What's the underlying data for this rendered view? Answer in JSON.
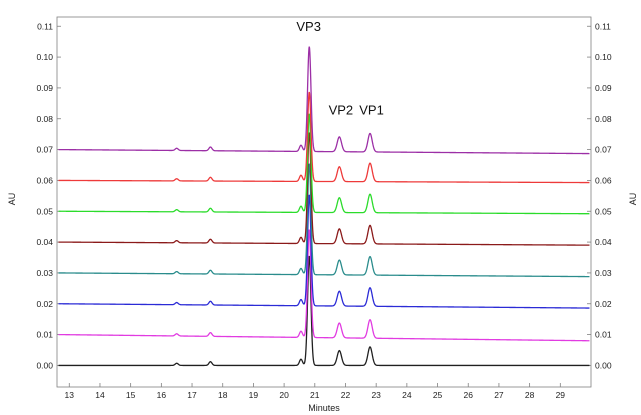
{
  "chart_data": {
    "type": "line",
    "title": "",
    "xlabel": "Minutes",
    "ylabel_left": "AU",
    "ylabel_right": "AU",
    "xlim": [
      12.6,
      30.0
    ],
    "ylim": [
      -0.007,
      0.113
    ],
    "x_ticks": [
      "13",
      "14",
      "15",
      "16",
      "17",
      "18",
      "19",
      "20",
      "21",
      "22",
      "23",
      "24",
      "25",
      "26",
      "27",
      "28",
      "29"
    ],
    "y_ticks": [
      "0.00",
      "0.01",
      "0.02",
      "0.03",
      "0.04",
      "0.05",
      "0.06",
      "0.07",
      "0.08",
      "0.09",
      "0.10",
      "0.11"
    ],
    "grid": false,
    "legend": "none",
    "annotations": [
      {
        "text": "VP3",
        "x": 20.8,
        "y": 0.1085
      },
      {
        "text": "VP2",
        "x": 21.85,
        "y": 0.0813
      },
      {
        "text": "VP1",
        "x": 22.85,
        "y": 0.0813
      }
    ],
    "peaks": [
      {
        "name": "minor",
        "rt": 16.5,
        "height": 0.0007
      },
      {
        "name": "minor",
        "rt": 17.6,
        "height": 0.0012
      },
      {
        "name": "minor",
        "rt": 20.55,
        "height": 0.002
      },
      {
        "name": "VP3",
        "rt": 20.82,
        "height": "series.vp3_height"
      },
      {
        "name": "VP2",
        "rt": 21.8,
        "height": 0.0048
      },
      {
        "name": "VP1",
        "rt": 22.8,
        "height": 0.006
      }
    ],
    "series": [
      {
        "color": "#202020",
        "baseline_start": 0.0,
        "baseline_end": 0.0,
        "vp3_height": 0.0355
      },
      {
        "color": "#e13be1",
        "baseline_start": 0.01,
        "baseline_end": 0.008,
        "vp3_height": 0.035
      },
      {
        "color": "#2b2bd6",
        "baseline_start": 0.02,
        "baseline_end": 0.0186,
        "vp3_height": 0.036
      },
      {
        "color": "#2a8c8c",
        "baseline_start": 0.03,
        "baseline_end": 0.0288,
        "vp3_height": 0.036
      },
      {
        "color": "#8b1a1a",
        "baseline_start": 0.04,
        "baseline_end": 0.039,
        "vp3_height": 0.036
      },
      {
        "color": "#2bdc2b",
        "baseline_start": 0.05,
        "baseline_end": 0.0492,
        "vp3_height": 0.032
      },
      {
        "color": "#ee3a3a",
        "baseline_start": 0.06,
        "baseline_end": 0.0593,
        "vp3_height": 0.029
      },
      {
        "color": "#9c2fa6",
        "baseline_start": 0.07,
        "baseline_end": 0.0687,
        "vp3_height": 0.034
      }
    ]
  }
}
